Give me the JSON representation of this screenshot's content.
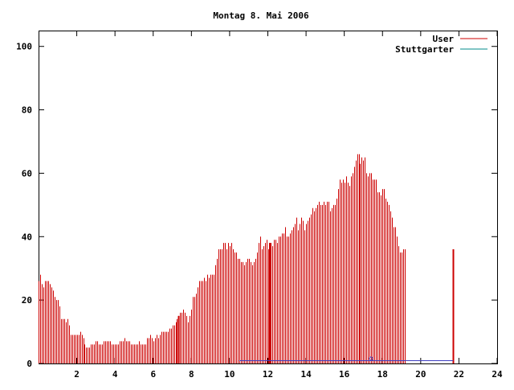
{
  "chart_data": {
    "type": "bar",
    "title": "Montag 8. Mai 2006",
    "xlabel": "",
    "ylabel": "",
    "xlim": [
      0,
      24
    ],
    "ylim": [
      0,
      105
    ],
    "x_ticks": [
      "2",
      "4",
      "6",
      "8",
      "10",
      "12",
      "14",
      "16",
      "18",
      "20",
      "22",
      "24"
    ],
    "y_ticks": [
      "0",
      "20",
      "40",
      "60",
      "80",
      "100"
    ],
    "grid": false,
    "legend_position": "top-right",
    "series": [
      {
        "name": "User",
        "color": "#cc0000",
        "style": "impulses",
        "step_minutes": 5,
        "values": [
          26,
          28,
          25,
          24,
          26,
          26,
          26,
          25,
          24,
          23,
          21,
          20,
          20,
          18,
          14,
          14,
          14,
          13,
          14,
          12,
          9,
          9,
          9,
          9,
          9,
          9,
          10,
          9,
          8,
          6,
          5,
          5,
          5,
          6,
          6,
          6,
          7,
          7,
          6,
          6,
          6,
          7,
          7,
          7,
          7,
          7,
          6,
          6,
          6,
          6,
          6,
          7,
          7,
          7,
          8,
          7,
          7,
          7,
          6,
          6,
          6,
          6,
          6,
          7,
          6,
          6,
          6,
          6,
          8,
          8,
          9,
          8,
          7,
          8,
          9,
          8,
          9,
          10,
          10,
          10,
          10,
          10,
          11,
          11,
          12,
          12,
          13,
          14,
          15,
          16,
          16,
          17,
          16,
          15,
          13,
          15,
          17,
          21,
          21,
          22,
          24,
          26,
          26,
          26,
          27,
          26,
          28,
          27,
          28,
          28,
          28,
          31,
          33,
          36,
          36,
          36,
          38,
          38,
          36,
          38,
          37,
          38,
          36,
          35,
          35,
          33,
          33,
          32,
          32,
          31,
          32,
          33,
          33,
          32,
          31,
          32,
          33,
          35,
          38,
          40,
          36,
          37,
          38,
          39,
          36,
          38,
          38,
          37,
          39,
          39,
          38,
          40,
          40,
          41,
          41,
          43,
          40,
          40,
          41,
          42,
          43,
          44,
          46,
          42,
          44,
          46,
          45,
          42,
          44,
          45,
          46,
          47,
          49,
          48,
          49,
          50,
          51,
          50,
          50,
          51,
          50,
          51,
          51,
          48,
          49,
          50,
          50,
          52,
          55,
          58,
          57,
          58,
          57,
          59,
          57,
          56,
          59,
          60,
          62,
          64,
          66,
          66,
          63,
          65,
          64,
          65,
          60,
          59,
          60,
          60,
          58,
          58,
          58,
          54,
          54,
          53,
          55,
          55,
          52,
          51,
          50,
          48,
          46,
          43,
          43,
          40,
          37,
          35,
          35,
          36,
          36
        ]
      },
      {
        "name": "Stuttgarter",
        "color": "#008b8b",
        "style": "impulses",
        "step_minutes": 5,
        "values": [
          0,
          0,
          0,
          0,
          0,
          0,
          0,
          0,
          0,
          0,
          0,
          0,
          0,
          0,
          0,
          0,
          0,
          0,
          0,
          0,
          0,
          0,
          0,
          0,
          0,
          0,
          0,
          0,
          0,
          0,
          0,
          0,
          0,
          0,
          0,
          0,
          0,
          0,
          0,
          0,
          0,
          0,
          0,
          0,
          0,
          0,
          0,
          0,
          0,
          0,
          0,
          0,
          0,
          0,
          0,
          0,
          0,
          0,
          0,
          0,
          0,
          0,
          0,
          0,
          0,
          0,
          0,
          0,
          0,
          0,
          0,
          0,
          0,
          0,
          0,
          0,
          0,
          0,
          0,
          0,
          0,
          0,
          0,
          0,
          0,
          0,
          0,
          0,
          0,
          0,
          0,
          0,
          0,
          0,
          0,
          0,
          0,
          0,
          0,
          0,
          0,
          0,
          0,
          0,
          0,
          0,
          0,
          0,
          0,
          0,
          0,
          0,
          0,
          0,
          0,
          0,
          0,
          0,
          0,
          0,
          0,
          0,
          0,
          0,
          0,
          0,
          0,
          0,
          0,
          0,
          0,
          0,
          0,
          0,
          0,
          0,
          0,
          0,
          0,
          0,
          0,
          0,
          0,
          0,
          0,
          0,
          0,
          0,
          0,
          0,
          0,
          0,
          0,
          0,
          0,
          0,
          0,
          0,
          0,
          0,
          0,
          0,
          0,
          0,
          0,
          0,
          0,
          0,
          0,
          0,
          0,
          0,
          0,
          0,
          0,
          0,
          0,
          0,
          0,
          0,
          0,
          0,
          0,
          0,
          0,
          0,
          0,
          0,
          0,
          0,
          0,
          0,
          0,
          0,
          0,
          0,
          0,
          0,
          0,
          0,
          0,
          0,
          0,
          0,
          0,
          0,
          0,
          0,
          0,
          0,
          0,
          0,
          0,
          0,
          0,
          0,
          0,
          0,
          0,
          0,
          0,
          0,
          0,
          0,
          0,
          0,
          0,
          0,
          0,
          0,
          0,
          0,
          0,
          0,
          0,
          0,
          0,
          0,
          0,
          0,
          0,
          0
        ]
      }
    ],
    "baseline_marker": {
      "color": "#4040c0",
      "x_start": 10.5,
      "x_end": 21.7,
      "y": 1
    }
  }
}
